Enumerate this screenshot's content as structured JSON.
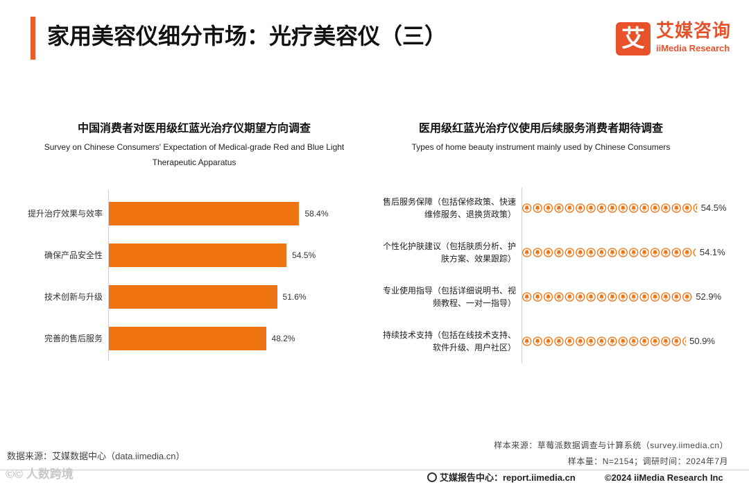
{
  "header": {
    "title": "家用美容仪细分市场：光疗美容仪（三）",
    "logo_mark": "艾",
    "logo_cn": "艾媒咨询",
    "logo_en": "iiMedia Research"
  },
  "left_chart": {
    "title": "中国消费者对医用级红蓝光治疗仪期望方向调查",
    "subtitle_line1": "Survey on Chinese Consumers' Expectation of Medical-grade Red and Blue Light",
    "subtitle_line2": "Therapeutic Apparatus"
  },
  "right_chart": {
    "title": "医用级红蓝光治疗仪使用后续服务消费者期待调查",
    "subtitle": "Types of home beauty instrument mainly used by Chinese Consumers"
  },
  "chart_data": [
    {
      "type": "bar",
      "orientation": "horizontal",
      "title": "中国消费者对医用级红蓝光治疗仪期望方向调查",
      "categories": [
        "提升治疗效果与效率",
        "确保产品安全性",
        "技术创新与升级",
        "完善的售后服务"
      ],
      "values": [
        58.4,
        54.5,
        51.6,
        48.2
      ],
      "value_labels": [
        "58.4%",
        "54.5%",
        "51.6%",
        "48.2%"
      ],
      "unit": "%",
      "color": "#f07312"
    },
    {
      "type": "bar",
      "style": "pictograph",
      "orientation": "horizontal",
      "title": "医用级红蓝光治疗仪使用后续服务消费者期待调查",
      "categories": [
        [
          "售后服务保障（包括保修政策、快速",
          "维修服务、退换货政策）"
        ],
        [
          "个性化护肤建议（包括肤质分析、护",
          "肤方案、效果跟踪）"
        ],
        [
          "专业使用指导（包括详细说明书、视",
          "频教程、一对一指导）"
        ],
        [
          "持续技术支持（包括在线技术支持、",
          "软件升级、用户社区）"
        ]
      ],
      "values": [
        54.5,
        54.1,
        52.9,
        50.9
      ],
      "value_labels": [
        "54.5%",
        "54.1%",
        "52.9%",
        "50.9%"
      ],
      "unit": "%",
      "color": "#f07312",
      "icon": "lamp-icon"
    }
  ],
  "footer": {
    "source_left": "数据来源：艾媒数据中心（data.iimedia.cn）",
    "sample_source": "样本来源：草莓派数据调查与计算系统（survey.iimedia.cn）",
    "sample_size": "样本量：N=2154；调研时间：2024年7月",
    "report_center": "艾媒报告中心：report.iimedia.cn",
    "copyright": "©2024  iiMedia Research  Inc",
    "watermark": "©© 人数跨境"
  }
}
